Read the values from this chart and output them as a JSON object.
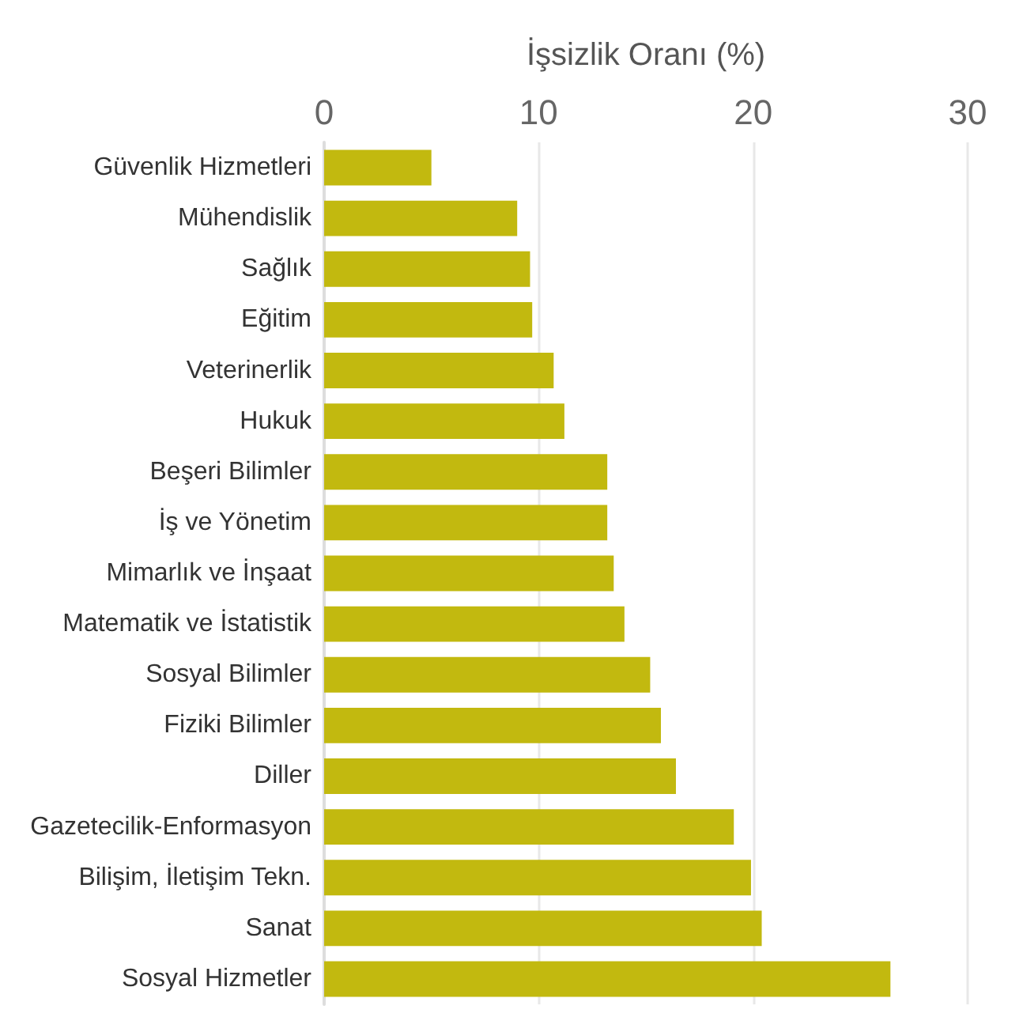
{
  "chart_data": {
    "type": "bar",
    "orientation": "horizontal",
    "xlabel": "İşsizlik Oranı (%)",
    "categories": [
      "Güvenlik Hizmetleri",
      "Mühendislik",
      "Sağlık",
      "Eğitim",
      "Veterinerlik",
      "Hukuk",
      "Beşeri Bilimler",
      "İş ve Yönetim",
      "Mimarlık ve İnşaat",
      "Matematik ve İstatistik",
      "Sosyal Bilimler",
      "Fiziki Bilimler",
      "Diller",
      "Gazetecilik-Enformasyon",
      "Bilişim, İletişim Tekn.",
      "Sanat",
      "Sosyal Hizmetler"
    ],
    "values": [
      5.0,
      9.0,
      9.6,
      9.7,
      10.7,
      11.2,
      13.2,
      13.2,
      13.5,
      14.0,
      15.2,
      15.7,
      16.4,
      19.1,
      19.9,
      20.4,
      26.4
    ],
    "color": "#c2b90f",
    "xlim": [
      0,
      30
    ],
    "xticks": [
      0,
      10,
      20,
      30
    ],
    "grid": "x"
  }
}
